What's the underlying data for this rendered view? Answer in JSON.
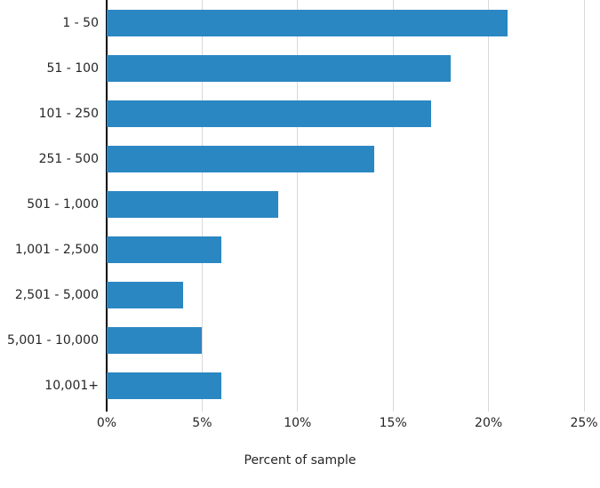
{
  "chart_data": {
    "type": "bar",
    "orientation": "horizontal",
    "title": "",
    "xlabel": "Percent of sample",
    "ylabel": "",
    "categories": [
      "1 - 50",
      "51 - 100",
      "101 - 250",
      "251 - 500",
      "501 - 1,000",
      "1,001 - 2,500",
      "2,501 - 5,000",
      "5,001 - 10,000",
      "10,001+"
    ],
    "values": [
      21,
      18,
      17,
      14,
      9,
      6,
      4,
      5,
      6
    ],
    "unit": "%",
    "xlim": [
      0,
      25
    ],
    "xticks": [
      "0%",
      "5%",
      "10%",
      "15%",
      "20%",
      "25%"
    ],
    "grid": true,
    "legend": false,
    "colors": {
      "bar": "#2a87c2",
      "gridline": "#d9d9d9",
      "axis_line": "#000000",
      "text": "#262626"
    }
  }
}
